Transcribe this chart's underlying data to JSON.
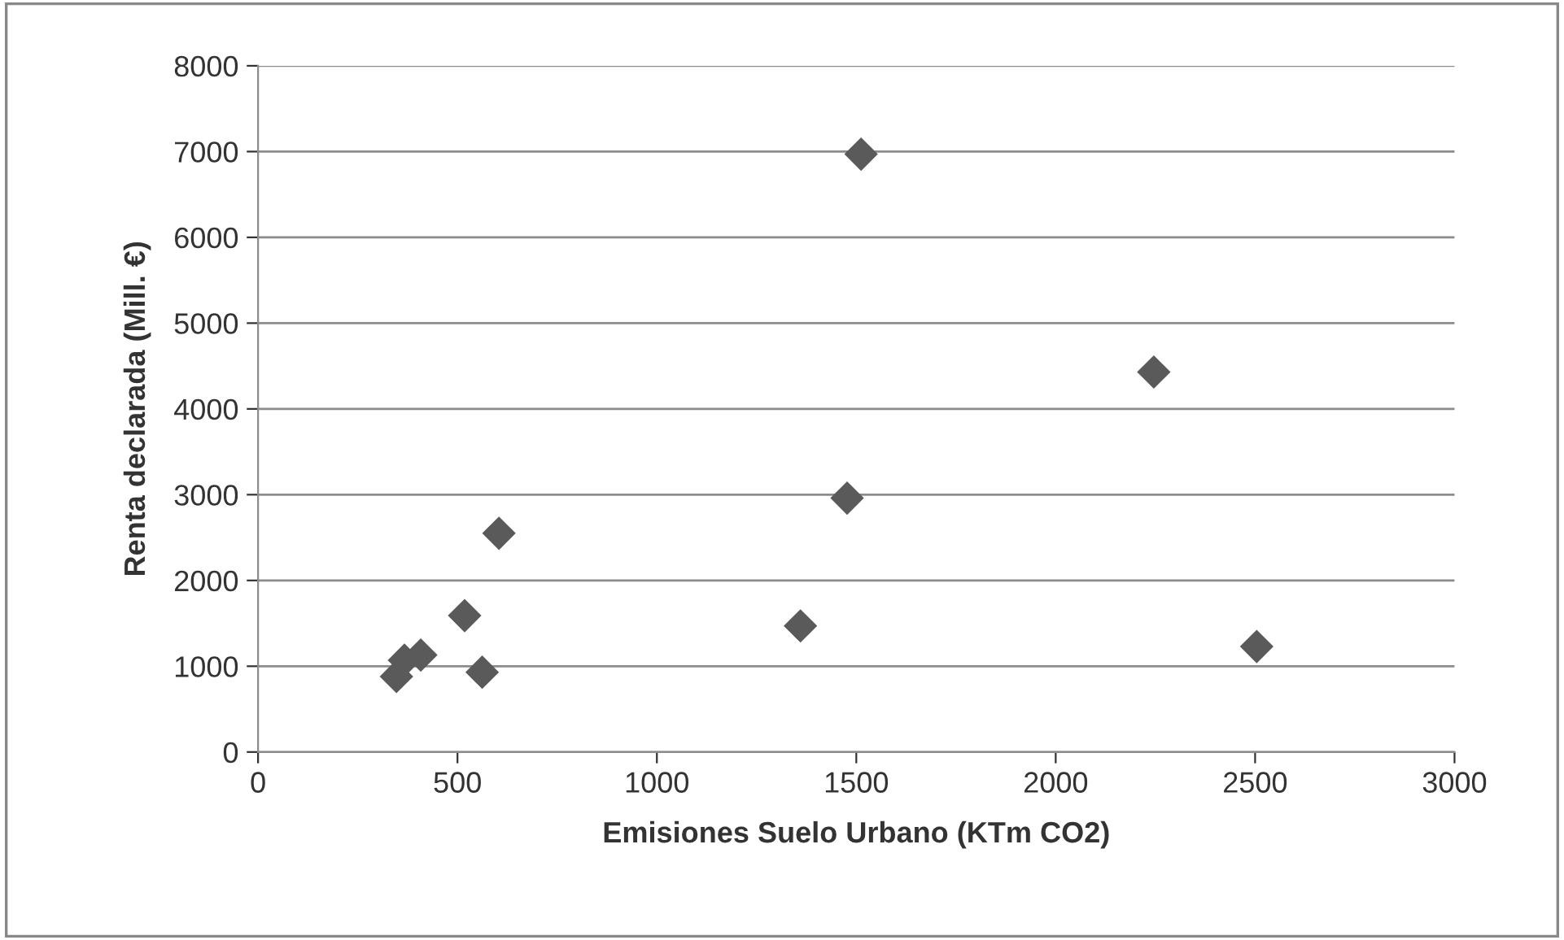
{
  "chart_data": {
    "type": "scatter",
    "xlabel": "Emisiones Suelo Urbano (KTm CO2)",
    "ylabel": "Renta declarada (Mill. €)",
    "x": [
      347,
      367,
      408,
      518,
      562,
      604,
      1360,
      1477,
      1512,
      2246,
      2504
    ],
    "series": [
      {
        "color": "#5a5a5a",
        "values": [
          880,
          1070,
          1130,
          1590,
          930,
          2550,
          1470,
          2960,
          6970,
          4430,
          1230
        ]
      }
    ],
    "xlim": [
      0,
      3000
    ],
    "xticks": [
      0,
      500,
      1000,
      1500,
      2000,
      2500,
      3000
    ],
    "ylim": [
      0,
      8000
    ],
    "yticks": [
      0,
      1000,
      2000,
      3000,
      4000,
      5000,
      6000,
      7000,
      8000
    ],
    "grid": "y",
    "marker": "diamond",
    "legend": false
  }
}
